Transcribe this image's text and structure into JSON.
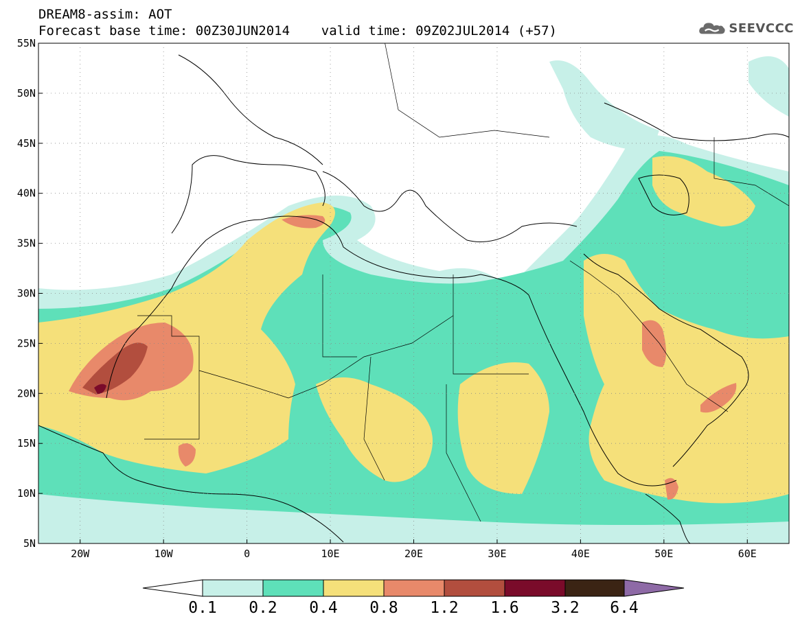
{
  "header": {
    "line1": "DREAM8-assim: AOT",
    "line2": "Forecast base time: 00Z30JUN2014    valid time: 09Z02JUL2014 (+57)"
  },
  "logo": {
    "text": "SEEVCCC",
    "icon": "cloud-logo-icon"
  },
  "map": {
    "lon_range": [
      -25,
      65
    ],
    "lat_range": [
      5,
      55
    ],
    "lat_ticks": [
      {
        "value": 5,
        "label": "5N"
      },
      {
        "value": 10,
        "label": "10N"
      },
      {
        "value": 15,
        "label": "15N"
      },
      {
        "value": 20,
        "label": "20N"
      },
      {
        "value": 25,
        "label": "25N"
      },
      {
        "value": 30,
        "label": "30N"
      },
      {
        "value": 35,
        "label": "35N"
      },
      {
        "value": 40,
        "label": "40N"
      },
      {
        "value": 45,
        "label": "45N"
      },
      {
        "value": 50,
        "label": "50N"
      },
      {
        "value": 55,
        "label": "55N"
      }
    ],
    "lon_ticks": [
      {
        "value": -20,
        "label": "20W"
      },
      {
        "value": -10,
        "label": "10W"
      },
      {
        "value": 0,
        "label": "0"
      },
      {
        "value": 10,
        "label": "10E"
      },
      {
        "value": 20,
        "label": "20E"
      },
      {
        "value": 30,
        "label": "30E"
      },
      {
        "value": 40,
        "label": "40E"
      },
      {
        "value": 50,
        "label": "50E"
      },
      {
        "value": 60,
        "label": "60E"
      }
    ],
    "grid": "dotted"
  },
  "colorbar": {
    "labels": [
      "0.1",
      "0.2",
      "0.4",
      "0.8",
      "1.2",
      "1.6",
      "3.2",
      "6.4"
    ],
    "colors": [
      "#ffffff",
      "#c7f0e8",
      "#5ee0b9",
      "#f5e07a",
      "#e8896a",
      "#b24e3e",
      "#7a0b2a",
      "#3b2414",
      "#8e6aa6"
    ]
  }
}
